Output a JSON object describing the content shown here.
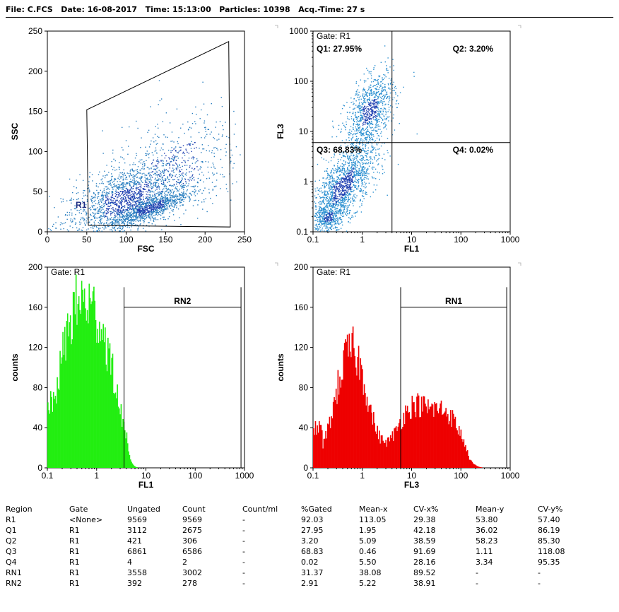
{
  "header": {
    "file": "File: C.FCS",
    "date": "Date: 16-08-2017",
    "time": "Time: 15:13:00",
    "particles": "Particles: 10398",
    "acq_time": "Acq.-Time: 27 s"
  },
  "chart_data": [
    {
      "id": "fsc-ssc",
      "type": "scatter",
      "xlabel": "FSC",
      "ylabel": "SSC",
      "xlim": [
        0,
        250
      ],
      "ylim": [
        0,
        250
      ],
      "xticks": [
        "0",
        "50",
        "100",
        "150",
        "200",
        "250"
      ],
      "yticks": [
        "0",
        "50",
        "100",
        "150",
        "200",
        "250"
      ],
      "regions": [
        {
          "name": "R1",
          "type": "polygon",
          "points": [
            [
              52,
              8
            ],
            [
              50,
              152
            ],
            [
              230,
              237
            ],
            [
              232,
              6
            ]
          ]
        }
      ],
      "colors": {
        "points": "#2a7fc0",
        "dense": "#1f3fb0",
        "gate": "#000000"
      }
    },
    {
      "id": "fl1-fl3",
      "type": "scatter",
      "scale": "log",
      "gate": "Gate: R1",
      "xlabel": "FL1",
      "ylabel": "FL3",
      "xlim": [
        0.1,
        1000
      ],
      "ylim": [
        0.1,
        1000
      ],
      "xticks": [
        "0.1",
        "1",
        "10",
        "100",
        "1000"
      ],
      "yticks": [
        "0.1",
        "1",
        "10",
        "100",
        "1000"
      ],
      "quadrant_split": {
        "x": 4,
        "y": 6
      },
      "quadrants": [
        {
          "name": "Q1",
          "label": "Q1: 27.95%",
          "percent": 27.95
        },
        {
          "name": "Q2",
          "label": "Q2: 3.20%",
          "percent": 3.2
        },
        {
          "name": "Q3",
          "label": "Q3: 68.83%",
          "percent": 68.83
        },
        {
          "name": "Q4",
          "label": "Q4: 0.02%",
          "percent": 0.02
        }
      ],
      "colors": {
        "points": "#2a8fd0",
        "dense": "#1f3fb0"
      }
    },
    {
      "id": "fl1-hist",
      "type": "histogram",
      "scale": "log",
      "gate": "Gate: R1",
      "xlabel": "FL1",
      "ylabel": "counts",
      "xlim": [
        0.1,
        1000
      ],
      "ylim": [
        0,
        200
      ],
      "xticks": [
        "0.1",
        "1",
        "10",
        "100",
        "1000"
      ],
      "yticks": [
        "0",
        "40",
        "80",
        "120",
        "160",
        "200"
      ],
      "marker": {
        "name": "RN2",
        "x_from": 3.6,
        "x_to": 850
      },
      "peaks": [
        {
          "x": 0.33,
          "count": 135
        },
        {
          "x": 1.25,
          "count": 117
        }
      ],
      "color": "#22ee11"
    },
    {
      "id": "fl3-hist",
      "type": "histogram",
      "scale": "log",
      "gate": "Gate: R1",
      "xlabel": "FL3",
      "ylabel": "counts",
      "xlim": [
        0.1,
        1000
      ],
      "ylim": [
        0,
        200
      ],
      "xticks": [
        "0.1",
        "1",
        "10",
        "100",
        "1000"
      ],
      "yticks": [
        "0",
        "40",
        "80",
        "120",
        "160",
        "200"
      ],
      "marker": {
        "name": "RN1",
        "x_from": 6,
        "x_to": 850
      },
      "peaks": [
        {
          "x": 0.6,
          "count": 120
        },
        {
          "x": 10,
          "count": 58
        },
        {
          "x": 50,
          "count": 52
        }
      ],
      "color": "#ee0000"
    }
  ],
  "stats_table": {
    "columns": [
      "Region",
      "Gate",
      "Ungated",
      "Count",
      "Count/ml",
      "%Gated",
      "Mean-x",
      "CV-x%",
      "Mean-y",
      "CV-y%"
    ],
    "rows": [
      [
        "R1",
        "<None>",
        "9569",
        "9569",
        "-",
        "92.03",
        "113.05",
        "29.38",
        "53.80",
        "57.40"
      ],
      [
        "Q1",
        "R1",
        "3112",
        "2675",
        "-",
        "27.95",
        "1.95",
        "42.18",
        "36.02",
        "86.19"
      ],
      [
        "Q2",
        "R1",
        "421",
        "306",
        "-",
        "3.20",
        "5.09",
        "38.59",
        "58.23",
        "85.30"
      ],
      [
        "Q3",
        "R1",
        "6861",
        "6586",
        "-",
        "68.83",
        "0.46",
        "91.69",
        "1.11",
        "118.08"
      ],
      [
        "Q4",
        "R1",
        "4",
        "2",
        "-",
        "0.02",
        "5.50",
        "28.16",
        "3.34",
        "95.35"
      ],
      [
        "RN1",
        "R1",
        "3558",
        "3002",
        "-",
        "31.37",
        "38.08",
        "89.52",
        "-",
        "-"
      ],
      [
        "RN2",
        "R1",
        "392",
        "278",
        "-",
        "2.91",
        "5.22",
        "38.91",
        "-",
        "-"
      ]
    ]
  }
}
